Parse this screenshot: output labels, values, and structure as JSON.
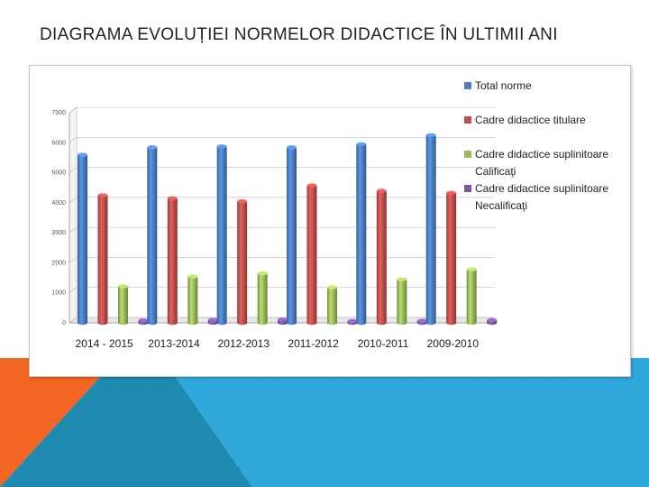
{
  "slide": {
    "title": "DIAGRAMA EVOLUȚIEI NORMELOR DIDACTICE ÎN ULTIMII  ANI"
  },
  "colors": {
    "orange": "#f26522",
    "blue": "#2fa8dc",
    "teal": "#1f8bb0"
  },
  "chart_data": {
    "type": "bar",
    "title": "",
    "xlabel": "",
    "ylabel": "",
    "ylim": [
      0,
      7000
    ],
    "yticks": [
      "0",
      "1000",
      "2000",
      "3000",
      "4000",
      "5000",
      "6000",
      "7000"
    ],
    "grid": true,
    "legend": "right",
    "categories": [
      "2014 - 2015",
      "2013-2014",
      "2012-2013",
      "2011-2012",
      "2010-2011",
      "2009-2010"
    ],
    "series": [
      {
        "name": "Total norme",
        "legend_lines": [
          "Total norme"
        ],
        "color": "#4a7fc1",
        "values": [
          5600,
          5850,
          5880,
          5850,
          5950,
          6250
        ]
      },
      {
        "name": "Cadre didactice titulare",
        "legend_lines": [
          "Cadre didactice titulare"
        ],
        "color": "#c0504d",
        "values": [
          4250,
          4150,
          4050,
          4580,
          4400,
          4330
        ]
      },
      {
        "name": "Cadre didactice suplinitoare Calificaţi",
        "legend_lines": [
          "Cadre didactice suplinitoare",
          "Calificaţi"
        ],
        "color": "#9bbb59",
        "values": [
          1220,
          1540,
          1650,
          1180,
          1450,
          1780
        ]
      },
      {
        "name": "Cadre didactice suplinitoare Necalificaţi",
        "legend_lines": [
          "Cadre didactice suplinitoare",
          "Necalificaţi"
        ],
        "color": "#7e55a3",
        "values": [
          80,
          100,
          110,
          60,
          70,
          90
        ]
      }
    ]
  }
}
